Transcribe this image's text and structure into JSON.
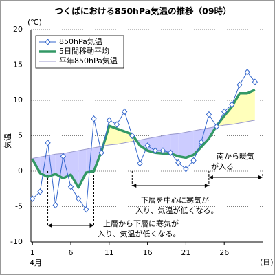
{
  "chart_data": {
    "type": "line",
    "title": "つくばにおける850hPa気温の推移（09時）",
    "y_unit": "(℃)",
    "y_label": "気温",
    "x_unit": "(日)",
    "month_label": "4月",
    "x": [
      1,
      2,
      3,
      4,
      5,
      6,
      7,
      8,
      9,
      10,
      11,
      12,
      13,
      14,
      15,
      16,
      17,
      18,
      19,
      20,
      21,
      22,
      23,
      24,
      25,
      26,
      27,
      28,
      29,
      30
    ],
    "series": [
      {
        "name": "850hPa気温",
        "color": "#3366cc",
        "marker": "diamond",
        "values": [
          -3.9,
          -2.9,
          4.0,
          -4.8,
          2.1,
          -2.2,
          -3.9,
          -5.4,
          7.4,
          2.6,
          7.2,
          6.6,
          8.4,
          5.0,
          1.1,
          3.6,
          2.9,
          2.9,
          2.6,
          1.2,
          0.3,
          1.5,
          4.1,
          8.0,
          6.3,
          8.4,
          9.4,
          12.2,
          14.0,
          12.6
        ]
      },
      {
        "name": "5日間移動平均",
        "color": "#339966",
        "values": [
          1.7,
          -0.3,
          -0.8,
          -0.4,
          -1.0,
          -0.5,
          -2.3,
          -0.2,
          0.0,
          2.8,
          6.4,
          6.0,
          5.6,
          5.2,
          3.6,
          2.9,
          2.6,
          2.5,
          2.5,
          2.1,
          1.9,
          2.3,
          3.4,
          4.6,
          6.4,
          7.8,
          9.1,
          11.0,
          11.0,
          11.5
        ]
      },
      {
        "name": "平年850hPa気温",
        "color": "#9999cc",
        "values": [
          1.8,
          2.0,
          2.2,
          2.4,
          2.5,
          2.7,
          2.9,
          3.1,
          3.3,
          3.5,
          3.7,
          3.8,
          4.0,
          4.2,
          4.4,
          4.6,
          4.8,
          5.0,
          5.2,
          5.3,
          5.5,
          5.7,
          5.9,
          6.1,
          6.3,
          6.5,
          6.6,
          6.8,
          7.0,
          7.2
        ]
      }
    ],
    "xlim": [
      0.8,
      31
    ],
    "xticks": [
      1,
      6,
      11,
      16,
      21,
      26
    ],
    "ylim": [
      -10,
      20
    ],
    "yticks": [
      -10,
      -5,
      0,
      5,
      10,
      15,
      20
    ],
    "grid": true,
    "fill_below_color": "#ccccff",
    "fill_above_color": "#ffffbb",
    "annotations": [
      {
        "lines": [
          "上層から下層に寒気が",
          "入り、気温が低くなる。"
        ]
      },
      {
        "lines": [
          "下層を中心に寒気が",
          "入り、気温が低くなる。"
        ]
      },
      {
        "lines": [
          "南から暖気",
          "が入る"
        ]
      }
    ]
  }
}
